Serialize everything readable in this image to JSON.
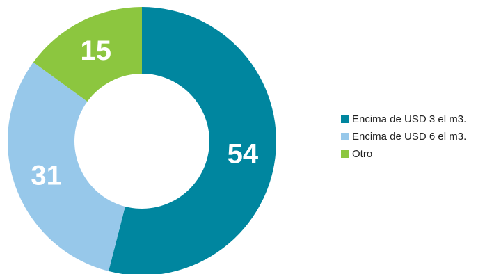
{
  "chart_data": {
    "type": "pie",
    "donut": true,
    "title": "",
    "legend_position": "right",
    "series": [
      {
        "name": "Encima de USD 3 el m3.",
        "value": 54,
        "label": "54",
        "color": "#00869f"
      },
      {
        "name": "Encima de USD 6 el m3.",
        "value": 31,
        "label": "31",
        "color": "#97c8ea"
      },
      {
        "name": "Otro",
        "value": 15,
        "label": "15",
        "color": "#8cc63f"
      }
    ]
  }
}
